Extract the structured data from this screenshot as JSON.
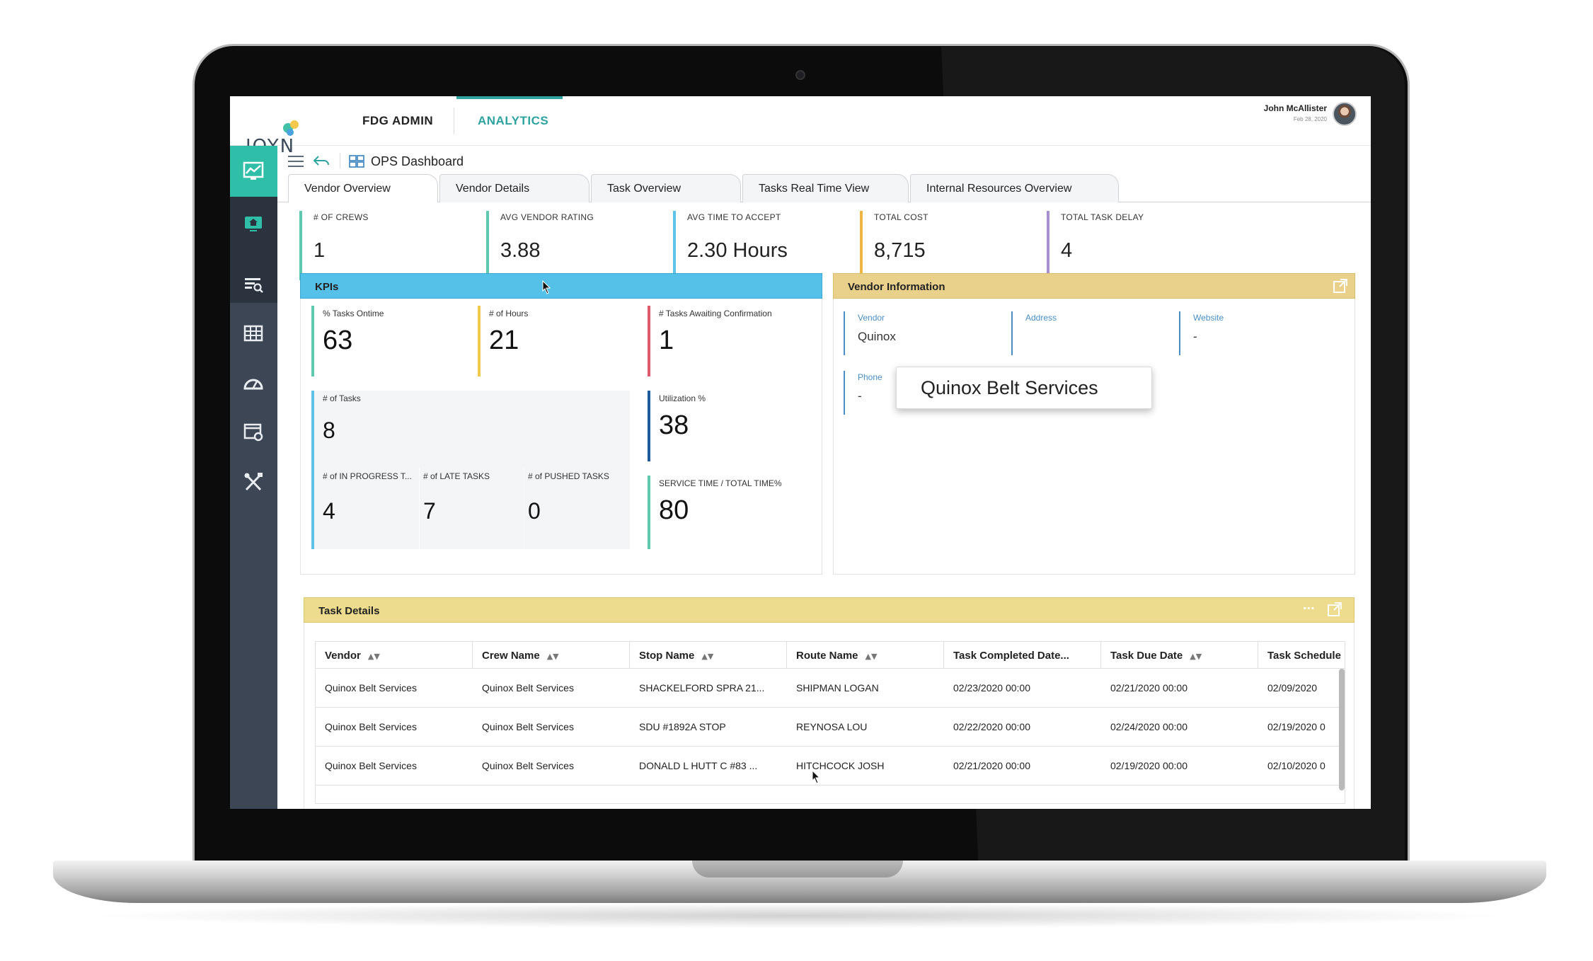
{
  "header": {
    "logo_text": "JOYN",
    "nav": {
      "admin": "FDG ADMIN",
      "analytics": "ANALYTICS"
    },
    "user": {
      "name": "John McAllister",
      "date": "Feb 28, 2020"
    }
  },
  "breadcrumb": {
    "title": "OPS Dashboard"
  },
  "tabs": [
    {
      "label": "Vendor Overview"
    },
    {
      "label": "Vendor Details"
    },
    {
      "label": "Task Overview"
    },
    {
      "label": "Tasks Real Time View"
    },
    {
      "label": "Internal Resources Overview"
    }
  ],
  "stats": [
    {
      "label": "# OF CREWS",
      "value": "1"
    },
    {
      "label": "AVG VENDOR RATING",
      "value": "3.88"
    },
    {
      "label": "AVG TIME TO ACCEPT",
      "value": "2.30 Hours"
    },
    {
      "label": "TOTAL COST",
      "value": "8,715"
    },
    {
      "label": "TOTAL TASK DELAY",
      "value": "4"
    }
  ],
  "kpi_panel": {
    "title": "KPIs",
    "ontime": {
      "label": "% Tasks Ontime",
      "value": "63"
    },
    "hours": {
      "label": "# of Hours",
      "value": "21"
    },
    "awaiting": {
      "label": "# Tasks Awaiting Confirmation",
      "value": "1"
    },
    "tasks": {
      "label": "# of Tasks",
      "value": "8"
    },
    "utilization": {
      "label": "Utilization %",
      "value": "38"
    },
    "in_progress": {
      "label": "# of IN PROGRESS T...",
      "value": "4"
    },
    "late": {
      "label": "# of LATE TASKS",
      "value": "7"
    },
    "pushed": {
      "label": "# of PUSHED TASKS",
      "value": "0"
    },
    "service_time": {
      "label": "SERVICE TIME / TOTAL TIME%",
      "value": "80"
    }
  },
  "vendor_panel": {
    "title": "Vendor Information",
    "vendor": {
      "label": "Vendor",
      "value": "Quinox"
    },
    "address": {
      "label": "Address",
      "value": ""
    },
    "website": {
      "label": "Website",
      "value": "-"
    },
    "phone": {
      "label": "Phone",
      "value": "-"
    },
    "tooltip": "Quinox Belt Services"
  },
  "task_panel": {
    "title": "Task Details",
    "more": "...",
    "columns": [
      "Vendor",
      "Crew Name",
      "Stop Name",
      "Route Name",
      "Task Completed Date...",
      "Task Due Date",
      "Task Schedule"
    ],
    "rows": [
      [
        "Quinox Belt Services",
        "Quinox Belt Services",
        "SHACKELFORD SPRA 21...",
        "SHIPMAN LOGAN",
        "02/23/2020 00:00",
        "02/21/2020 00:00",
        "02/09/2020"
      ],
      [
        "Quinox Belt Services",
        "Quinox Belt Services",
        "SDU #1892A STOP",
        "REYNOSA LOU",
        "02/22/2020 00:00",
        "02/24/2020 00:00",
        "02/19/2020 0"
      ],
      [
        "Quinox Belt Services",
        "Quinox Belt Services",
        "DONALD L HUTT C #83 ...",
        "HITCHCOCK JOSH",
        "02/21/2020 00:00",
        "02/19/2020 00:00",
        "02/10/2020 0"
      ]
    ]
  },
  "colors": {
    "accent_teal": "#2fbfa8",
    "kpi_header": "#55c1e8",
    "vendor_header": "#e9d18c",
    "task_header": "#eedc8e",
    "sidebar": "#3c4654"
  },
  "icons": [
    "chart-icon",
    "home-monitor-icon",
    "search-list-icon",
    "grid-icon",
    "gauge-icon",
    "settings-window-icon",
    "tools-icon",
    "menu-icon",
    "back-arrow-icon",
    "dashboard-icon",
    "external-link-icon",
    "sort-icon"
  ]
}
